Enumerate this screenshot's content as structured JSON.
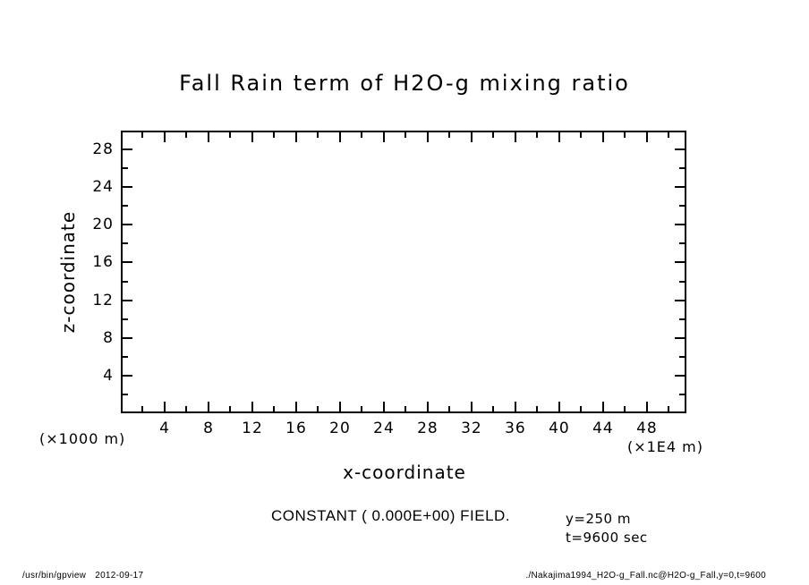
{
  "window": {
    "background_color": "#ffffff",
    "line_color": "#000000"
  },
  "chart_data": {
    "type": "contour",
    "title": "Fall Rain term of H2O-g mixing ratio",
    "xlabel": "x-coordinate",
    "ylabel": "z-coordinate",
    "x_unit": "(×1E4 m)",
    "y_unit": "(×1000 m)",
    "xlim": [
      0,
      51.6
    ],
    "ylim": [
      0,
      30
    ],
    "x_major_ticks": [
      4,
      8,
      12,
      16,
      20,
      24,
      28,
      32,
      36,
      40,
      44,
      48
    ],
    "x_minor_ticks": [
      2,
      6,
      10,
      14,
      18,
      22,
      26,
      30,
      34,
      38,
      42,
      46,
      50
    ],
    "y_major_ticks": [
      4,
      8,
      12,
      16,
      20,
      24,
      28
    ],
    "y_minor_ticks": [
      2,
      6,
      10,
      14,
      18,
      22,
      26
    ],
    "grid": false,
    "legend": null,
    "field": "constant",
    "constant_value": "0.000E+00",
    "series": []
  },
  "annotations": {
    "constant_note": "CONSTANT ( 0.000E+00) FIELD.",
    "y_slice": "y=250 m",
    "t_slice": "t=9600 sec"
  },
  "footer": {
    "command": "/usr/bin/gpview",
    "date": "2012-09-17",
    "source": "./Nakajima1994_H2O-g_Fall.nc@H2O-g_Fall,y=0,t=9600"
  }
}
